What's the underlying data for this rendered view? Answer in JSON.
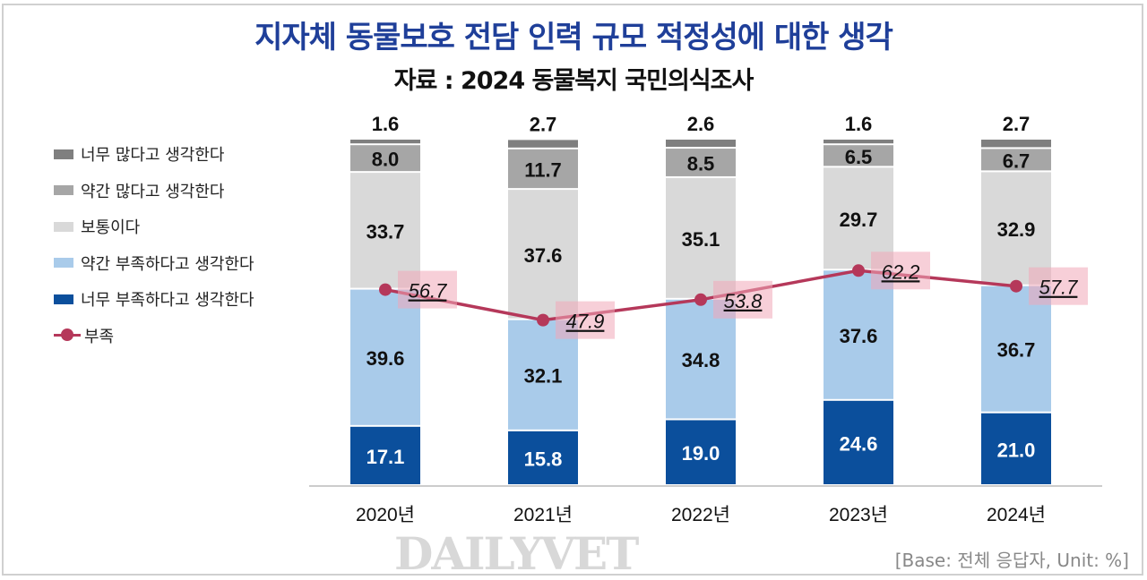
{
  "title": "지자체 동물보호 전담 인력 규모 적정성에 대한 생각",
  "subtitle": "자료 : 2024 동물복지 국민의식조사",
  "note": "[Base: 전체 응답자, Unit: %]",
  "watermark": "DAILYVET",
  "chart_data": {
    "type": "bar",
    "stacked": true,
    "categories": [
      "2020년",
      "2021년",
      "2022년",
      "2023년",
      "2024년"
    ],
    "series": [
      {
        "name": "너무 부족하다고 생각한다",
        "color": "#0b4f9c",
        "values": [
          17.1,
          15.8,
          19.0,
          24.6,
          21.0
        ]
      },
      {
        "name": "약간 부족하다고 생각한다",
        "color": "#a9cbea",
        "values": [
          39.6,
          32.1,
          34.8,
          37.6,
          36.7
        ]
      },
      {
        "name": "보통이다",
        "color": "#d9d9d9",
        "values": [
          33.7,
          37.6,
          35.1,
          29.7,
          32.9
        ]
      },
      {
        "name": "약간 많다고 생각한다",
        "color": "#a6a6a6",
        "values": [
          8.0,
          11.7,
          8.5,
          6.5,
          6.7
        ]
      },
      {
        "name": "너무 많다고 생각한다",
        "color": "#7f7f7f",
        "values": [
          1.6,
          2.7,
          2.6,
          1.6,
          2.7
        ]
      }
    ],
    "line": {
      "name": "부족",
      "color": "#b5385a",
      "values": [
        56.7,
        47.9,
        53.8,
        62.2,
        57.7
      ]
    },
    "ylim": [
      0,
      100
    ],
    "grid": false,
    "legend": "left"
  }
}
